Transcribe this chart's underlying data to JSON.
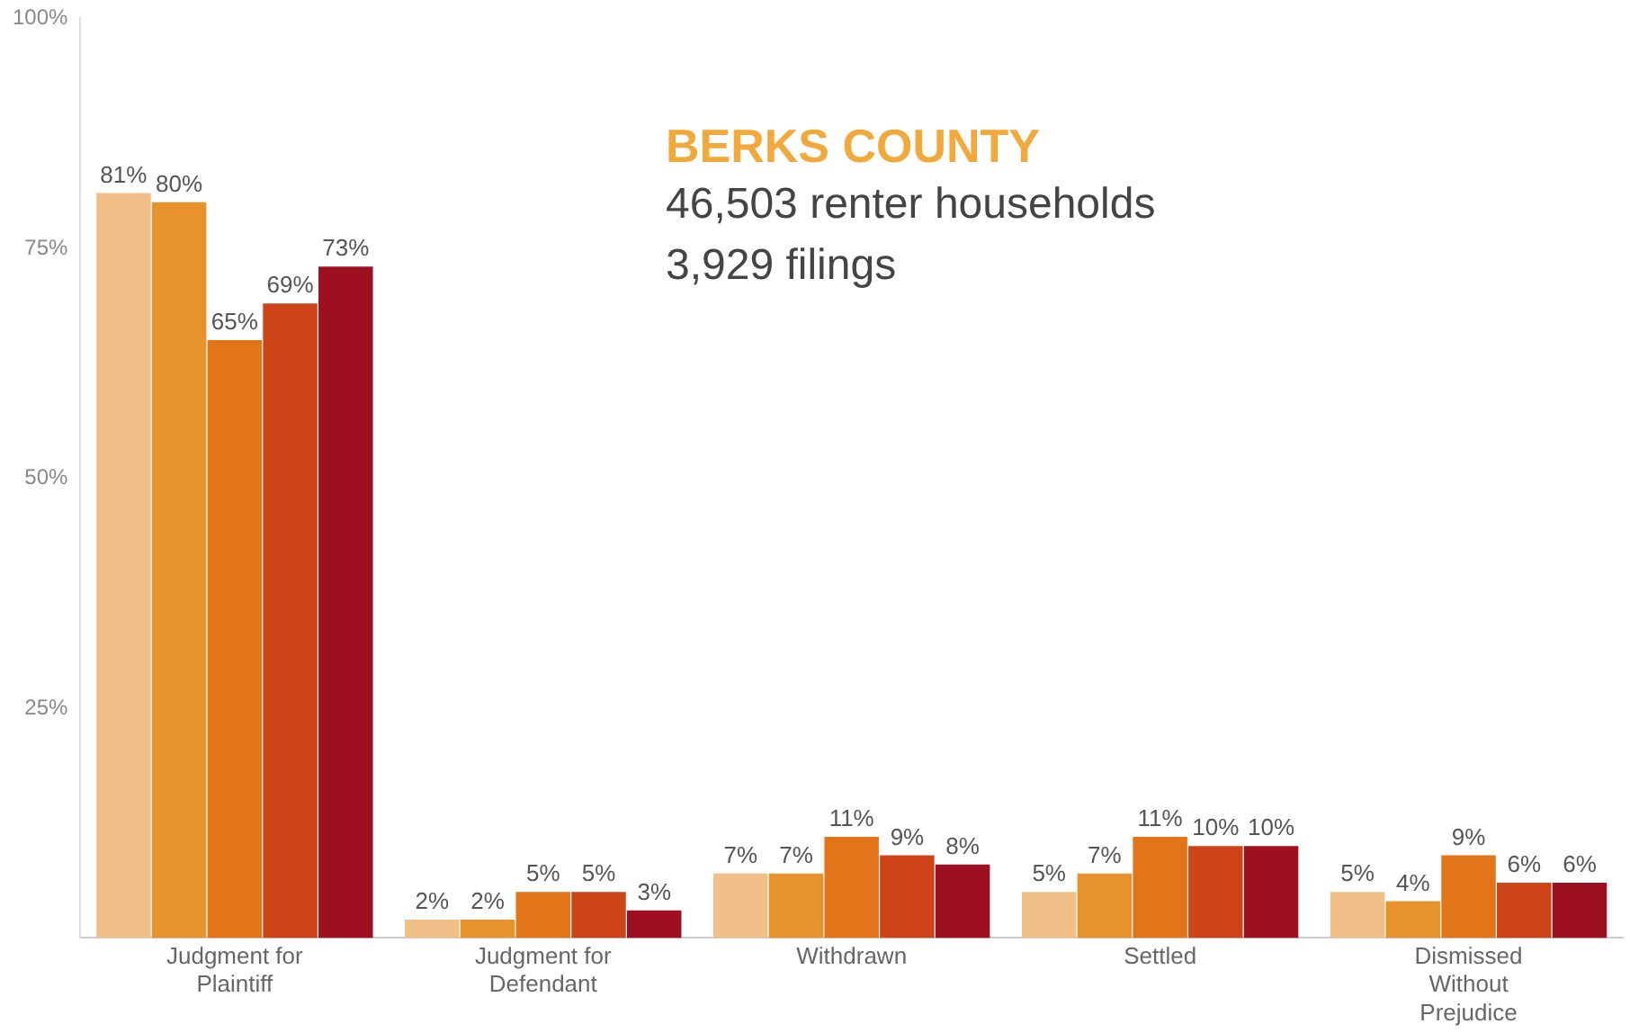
{
  "chart_data": {
    "type": "bar",
    "title": "BERKS COUNTY",
    "annotations": [
      "46,503 renter households",
      "3,929 filings"
    ],
    "categories": [
      "Judgment for Plaintiff",
      "Judgment for Defendant",
      "Withdrawn",
      "Settled",
      "Dismissed Without Prejudice"
    ],
    "series": [
      {
        "color": "#f0c088",
        "values": [
          81,
          2,
          7,
          5,
          5
        ],
        "value_labels": [
          "81%",
          "2%",
          "7%",
          "5%",
          "5%"
        ]
      },
      {
        "color": "#e8922e",
        "values": [
          80,
          2,
          7,
          7,
          4
        ],
        "value_labels": [
          "80%",
          "2%",
          "7%",
          "7%",
          "4%"
        ]
      },
      {
        "color": "#e2741a",
        "values": [
          65,
          5,
          11,
          11,
          9
        ],
        "value_labels": [
          "65%",
          "5%",
          "11%",
          "11%",
          "9%"
        ]
      },
      {
        "color": "#cc4418",
        "values": [
          69,
          5,
          9,
          10,
          6
        ],
        "value_labels": [
          "69%",
          "5%",
          "9%",
          "10%",
          "6%"
        ]
      },
      {
        "color": "#9c1020",
        "values": [
          73,
          3,
          8,
          10,
          6
        ],
        "value_labels": [
          "73%",
          "3%",
          "8%",
          "10%",
          "6%"
        ]
      }
    ],
    "ylim": [
      0,
      100
    ],
    "yticks": [
      {
        "value": 25,
        "label": "25%"
      },
      {
        "value": 50,
        "label": "50%"
      },
      {
        "value": 75,
        "label": "75%"
      },
      {
        "value": 100,
        "label": "100%"
      }
    ],
    "grid": false,
    "legend": false
  }
}
